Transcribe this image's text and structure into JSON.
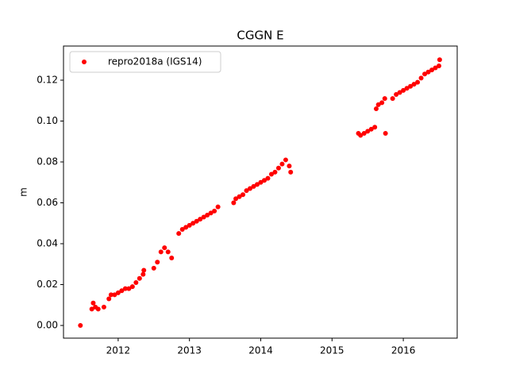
{
  "chart_data": {
    "type": "scatter",
    "title": "CGGN E",
    "y_label": "m",
    "legend": "upper left",
    "xlim": [
      2011.233,
      2016.756
    ],
    "xticks": [
      2012,
      2013,
      2014,
      2015,
      2016
    ],
    "ylim": [
      -0.0062,
      0.1367
    ],
    "yticks": [
      {
        "value": 0,
        "label": "0.00"
      },
      0.02,
      0.04,
      0.06,
      0.08,
      {
        "value": 0.1,
        "label": "0.10"
      },
      0.12
    ],
    "x": [
      2011.47,
      2011.63,
      2011.65,
      2011.68,
      2011.72,
      2011.8,
      2011.87,
      2011.9,
      2011.95,
      2012.0,
      2012.05,
      2012.1,
      2012.15,
      2012.2,
      2012.25,
      2012.3,
      2012.35,
      2012.36,
      2012.5,
      2012.55,
      2012.6,
      2012.65,
      2012.7,
      2012.75,
      2012.85,
      2012.9,
      2012.95,
      2013.0,
      2013.05,
      2013.1,
      2013.15,
      2013.2,
      2013.25,
      2013.3,
      2013.35,
      2013.4,
      2013.62,
      2013.65,
      2013.7,
      2013.75,
      2013.8,
      2013.85,
      2013.9,
      2013.95,
      2014.0,
      2014.05,
      2014.1,
      2014.15,
      2014.2,
      2014.25,
      2014.3,
      2014.35,
      2014.4,
      2014.42,
      2015.37,
      2015.4,
      2015.45,
      2015.5,
      2015.55,
      2015.6,
      2015.62,
      2015.65,
      2015.7,
      2015.74,
      2015.75,
      2015.85,
      2015.9,
      2015.95,
      2016.0,
      2016.05,
      2016.1,
      2016.15,
      2016.2,
      2016.25,
      2016.3,
      2016.35,
      2016.4,
      2016.45,
      2016.5,
      2016.51
    ],
    "series": [
      {
        "name": "repro2018a (IGS14)",
        "color": "#ff0000",
        "values": [
          0.0,
          0.008,
          0.011,
          0.009,
          0.008,
          0.009,
          0.013,
          0.015,
          0.015,
          0.016,
          0.017,
          0.018,
          0.018,
          0.019,
          0.021,
          0.023,
          0.025,
          0.027,
          0.028,
          0.031,
          0.036,
          0.038,
          0.036,
          0.033,
          0.045,
          0.047,
          0.048,
          0.049,
          0.05,
          0.051,
          0.052,
          0.053,
          0.054,
          0.055,
          0.056,
          0.058,
          0.06,
          0.062,
          0.063,
          0.064,
          0.066,
          0.067,
          0.068,
          0.069,
          0.07,
          0.071,
          0.072,
          0.074,
          0.075,
          0.077,
          0.079,
          0.081,
          0.078,
          0.075,
          0.094,
          0.093,
          0.094,
          0.095,
          0.096,
          0.097,
          0.106,
          0.108,
          0.109,
          0.111,
          0.094,
          0.111,
          0.113,
          0.114,
          0.115,
          0.116,
          0.117,
          0.118,
          0.119,
          0.121,
          0.123,
          0.124,
          0.125,
          0.126,
          0.127,
          0.13
        ]
      }
    ]
  }
}
